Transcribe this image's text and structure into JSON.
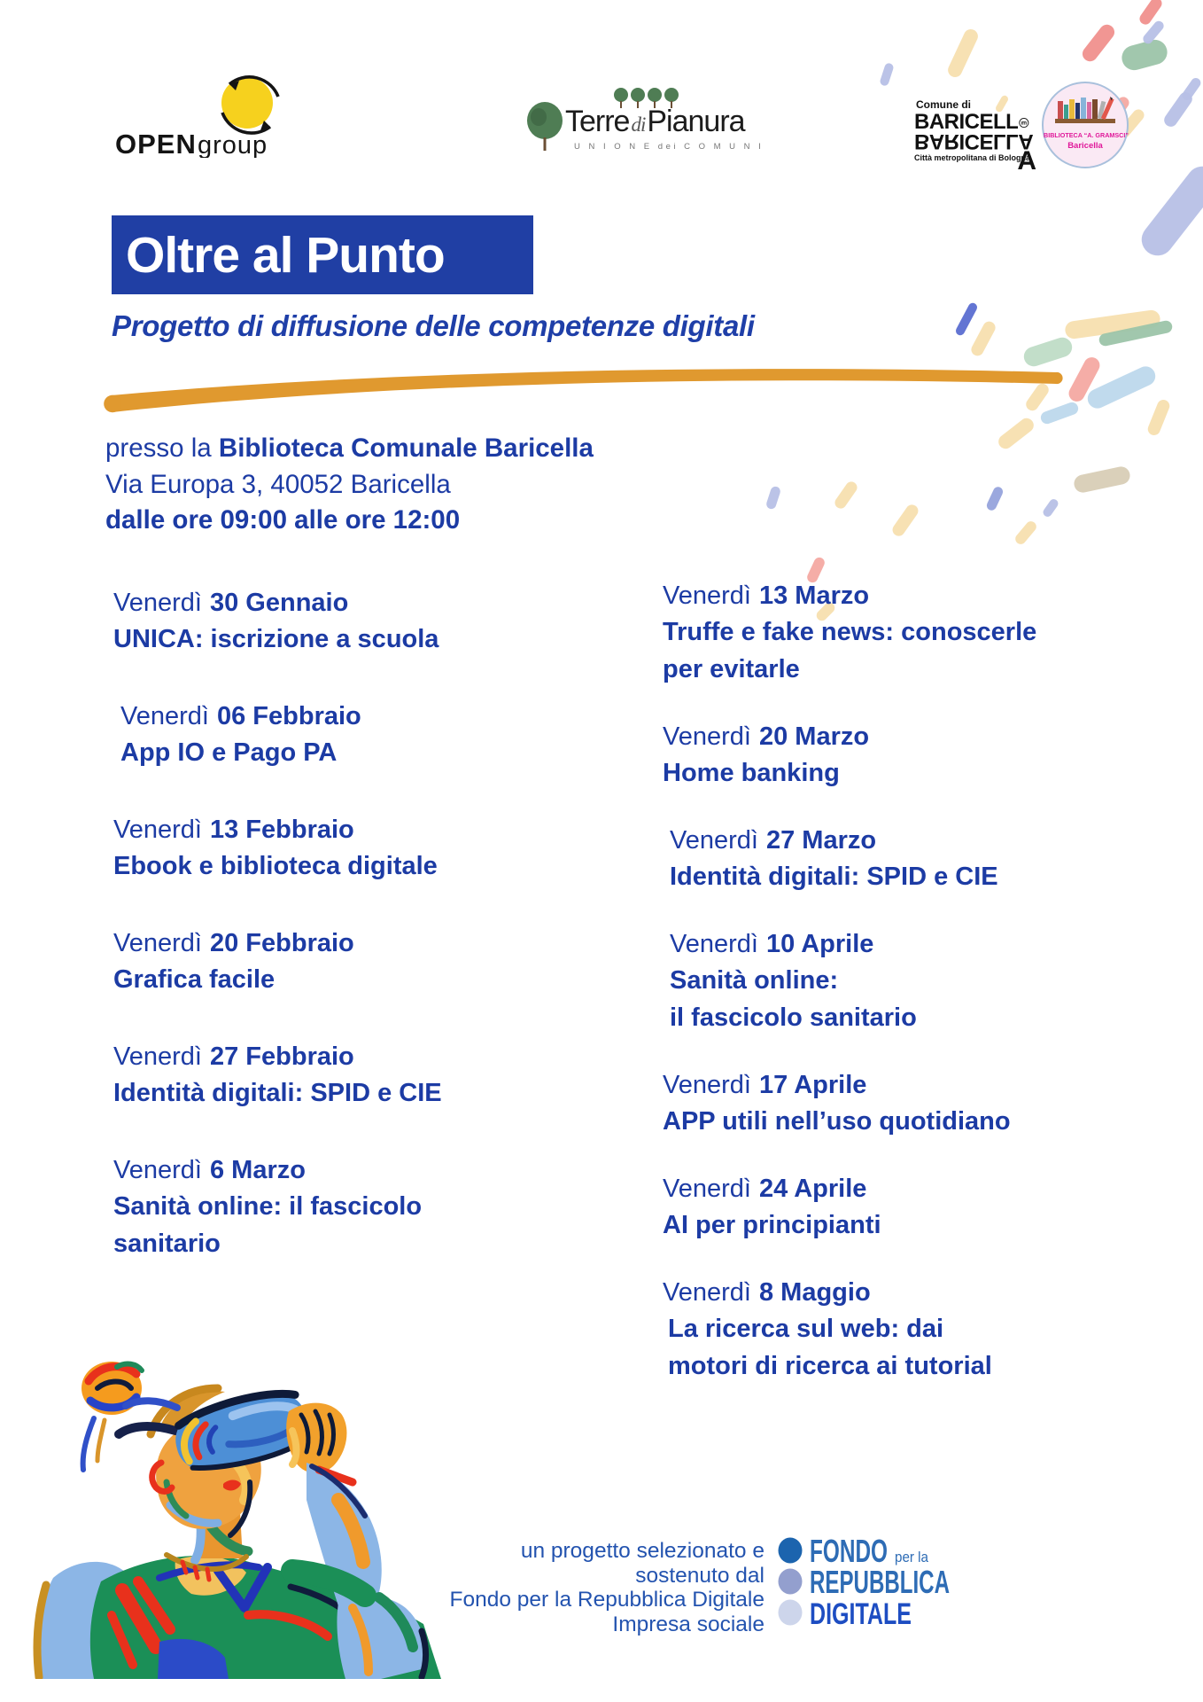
{
  "title": "Oltre al Punto",
  "subtitle": "Progetto di diffusione delle competenze digitali",
  "logos": {
    "open_group": {
      "word_bold": "OPEN",
      "word_light": "group"
    },
    "terre_di_pianura": {
      "part1": "Terre",
      "part2": "di",
      "part3": "Pianura",
      "subtitle": "U N I O N E   dei   C O M U N I"
    },
    "comune_baricella": {
      "prefix": "Comune di",
      "name_top": "BARICELL",
      "name_mirrored": "BARICELLA",
      "city_line": "Città metropolitana di Bologna",
      "big_letter": "A"
    },
    "biblioteca": {
      "name": "BIBLIOTECA “A. GRAMSCI”",
      "place": "Baricella"
    }
  },
  "venue": {
    "intro": "presso la ",
    "name": "Biblioteca Comunale Baricella",
    "address": "Via Europa 3, 40052 Baricella",
    "hours": "dalle ore 09:00 alle ore 12:00"
  },
  "schedule": {
    "day_label": "Venerdì",
    "left_column": [
      {
        "date": "30 Gennaio",
        "topic": [
          "UNICA: iscrizione a scuola"
        ]
      },
      {
        "date": "06 Febbraio",
        "topic": [
          "App IO e Pago PA"
        ]
      },
      {
        "date": "13 Febbraio",
        "topic": [
          "Ebook e biblioteca digitale"
        ]
      },
      {
        "date": "20 Febbraio",
        "topic": [
          "Grafica facile"
        ]
      },
      {
        "date": "27 Febbraio",
        "topic": [
          "Identità digitali: SPID e CIE"
        ]
      },
      {
        "date": "6 Marzo",
        "topic": [
          "Sanità online: il fascicolo",
          "sanitario"
        ]
      }
    ],
    "right_column": [
      {
        "date": "13 Marzo",
        "topic": [
          "Truffe e fake news: conoscerle",
          "per evitarle"
        ]
      },
      {
        "date": "20 Marzo",
        "topic": [
          "Home banking"
        ]
      },
      {
        "date": "27 Marzo",
        "topic": [
          "Identità digitali: SPID e CIE"
        ]
      },
      {
        "date": "10 Aprile",
        "topic": [
          "Sanità online:",
          "il fascicolo sanitario"
        ]
      },
      {
        "date": "17 Aprile",
        "topic": [
          "APP utili nell’uso quotidiano"
        ]
      },
      {
        "date": "24 Aprile",
        "topic": [
          "AI per principianti"
        ]
      },
      {
        "date": "8 Maggio",
        "topic": [
          "La ricerca sul web: dai",
          "motori di ricerca ai tutorial"
        ]
      }
    ]
  },
  "footer": {
    "credit_lines": [
      "un progetto selezionato e",
      "sostenuto dal",
      "Fondo per la Repubblica Digitale",
      "Impresa sociale"
    ],
    "fondo_logo": {
      "word1": "FONDO",
      "word1_suffix": "per la",
      "word2": "REPUBBLICA",
      "word3": "DIGITALE"
    }
  },
  "colors": {
    "text_blue": "#1C3BA4",
    "banner_blue": "#203FA4",
    "accent_orange": "#E0992F",
    "fondo_blue": "#2E6CB5",
    "digitale_blue": "#1D4DC2",
    "biblioteca_magenta": "#E0189A"
  }
}
